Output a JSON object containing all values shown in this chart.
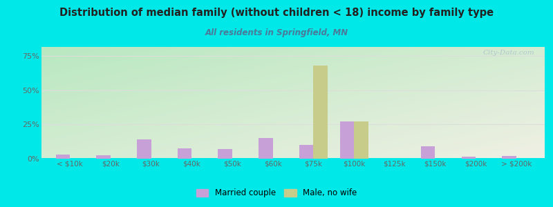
{
  "title": "Distribution of median family (without children < 18) income by family type",
  "subtitle": "All residents in Springfield, MN",
  "categories": [
    "< $10k",
    "$20k",
    "$30k",
    "$40k",
    "$50k",
    "$60k",
    "$75k",
    "$100k",
    "$125k",
    "$150k",
    "$200k",
    "> $200k"
  ],
  "married_couple": [
    3.0,
    2.5,
    14.0,
    7.5,
    7.0,
    15.0,
    10.0,
    27.0,
    0.0,
    9.0,
    1.5,
    2.0
  ],
  "male_no_wife": [
    0.0,
    0.0,
    0.0,
    0.0,
    0.0,
    0.0,
    68.0,
    27.0,
    0.0,
    0.0,
    0.0,
    0.0
  ],
  "married_color": "#c8a0d8",
  "male_color": "#c8cc8a",
  "bg_outer": "#00e8e8",
  "bg_plot_topleft": "#b8e8c0",
  "bg_plot_bottomright": "#f0f0e4",
  "title_color": "#222222",
  "subtitle_color": "#4a7a9a",
  "axis_color": "#666666",
  "grid_color": "#dddddd",
  "yticks": [
    0,
    25,
    50,
    75
  ],
  "ytick_labels": [
    "0%",
    "25%",
    "50%",
    "75%"
  ],
  "bar_width": 0.35,
  "watermark": "City-Data.com",
  "ylim_max": 82
}
